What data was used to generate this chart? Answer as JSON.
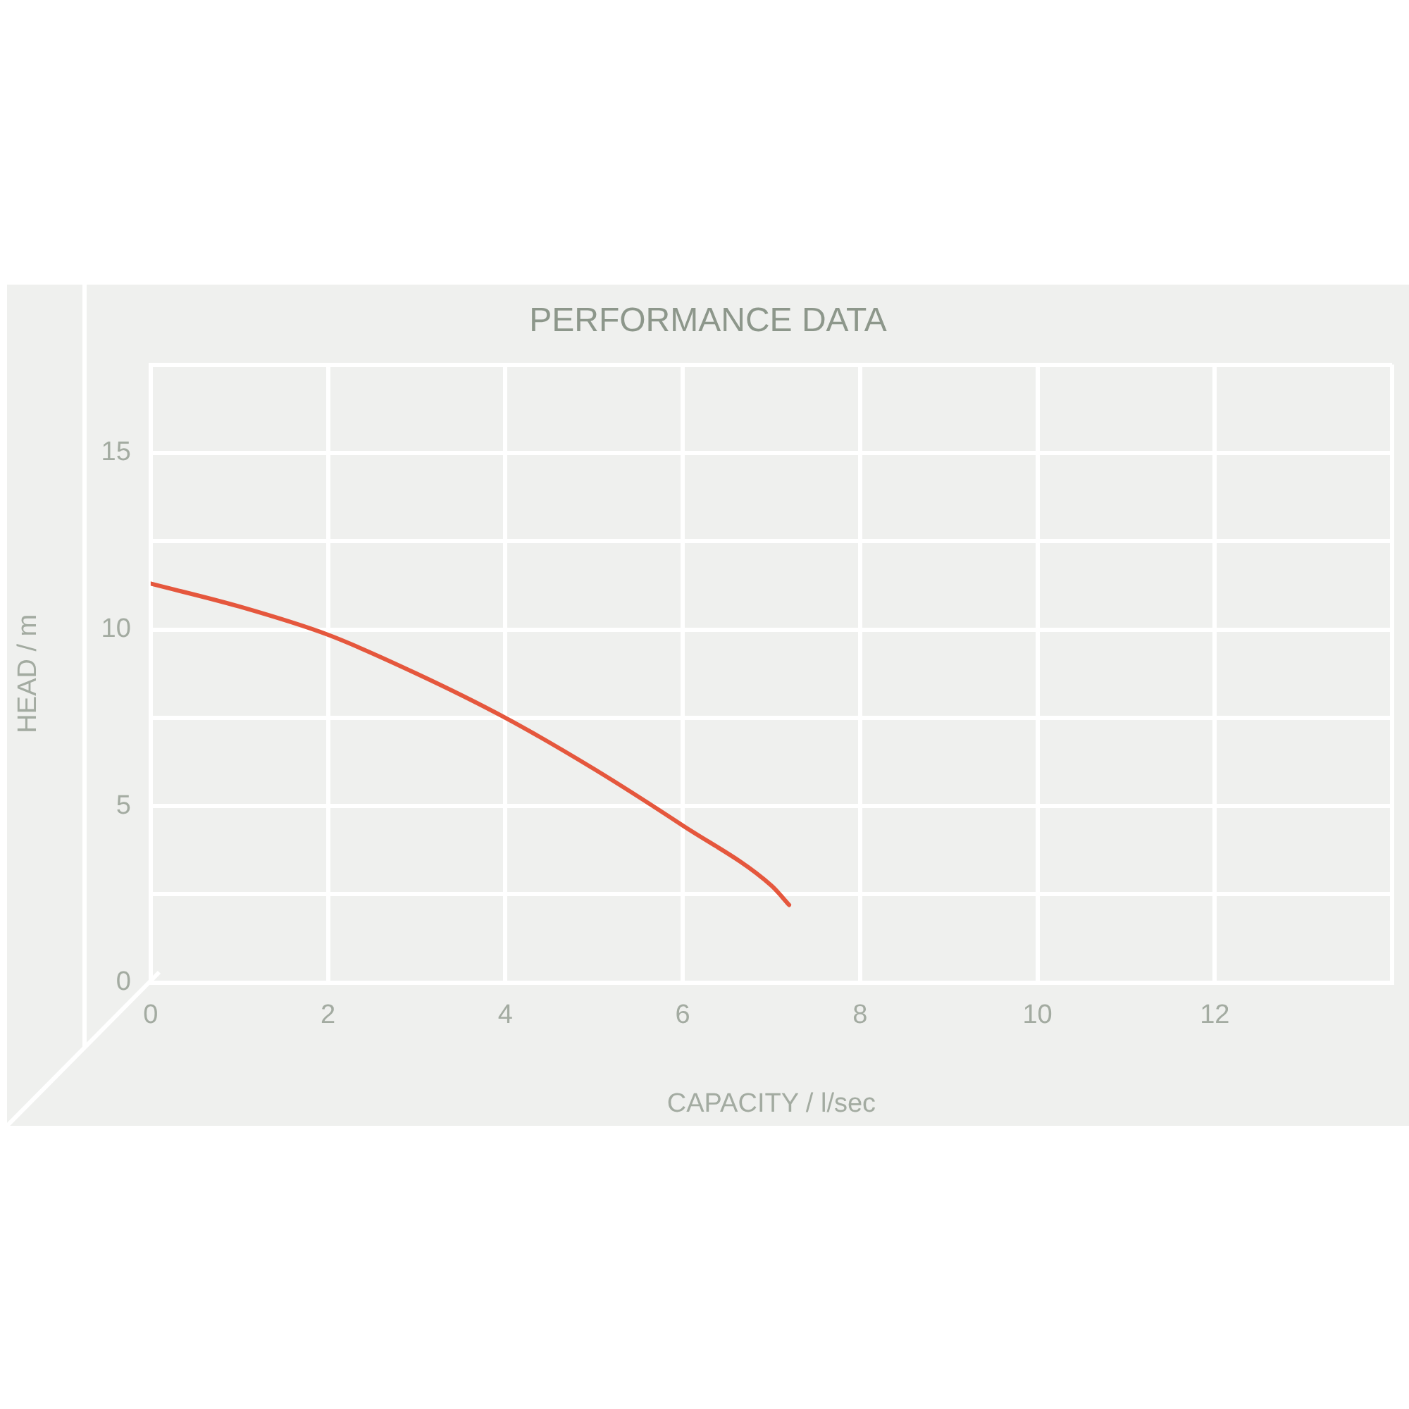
{
  "chart_data": {
    "type": "line",
    "title": "PERFORMANCE DATA",
    "xlabel": "CAPACITY / l/sec",
    "ylabel": "HEAD / m",
    "x": [
      0,
      1,
      2,
      3,
      4,
      5,
      6,
      7,
      7.2
    ],
    "series": [
      {
        "color": "#e5573d",
        "values": [
          11.3,
          10.65,
          9.85,
          8.75,
          7.5,
          6.05,
          4.45,
          2.75,
          2.2
        ]
      }
    ],
    "xlim": [
      0,
      14
    ],
    "xticks": [
      0,
      2,
      4,
      6,
      8,
      10,
      12,
      {
        "value": 14,
        "label": null
      }
    ],
    "ylim": [
      0,
      17.5
    ],
    "yticks": [
      0,
      {
        "value": 2.5,
        "label": null
      },
      5,
      {
        "value": 7.5,
        "label": null
      },
      10,
      {
        "value": 12.5,
        "label": null
      },
      15,
      {
        "value": 17.5,
        "label": null
      }
    ],
    "grid": true,
    "legend": false,
    "marker": "none",
    "line_style": "solid"
  }
}
